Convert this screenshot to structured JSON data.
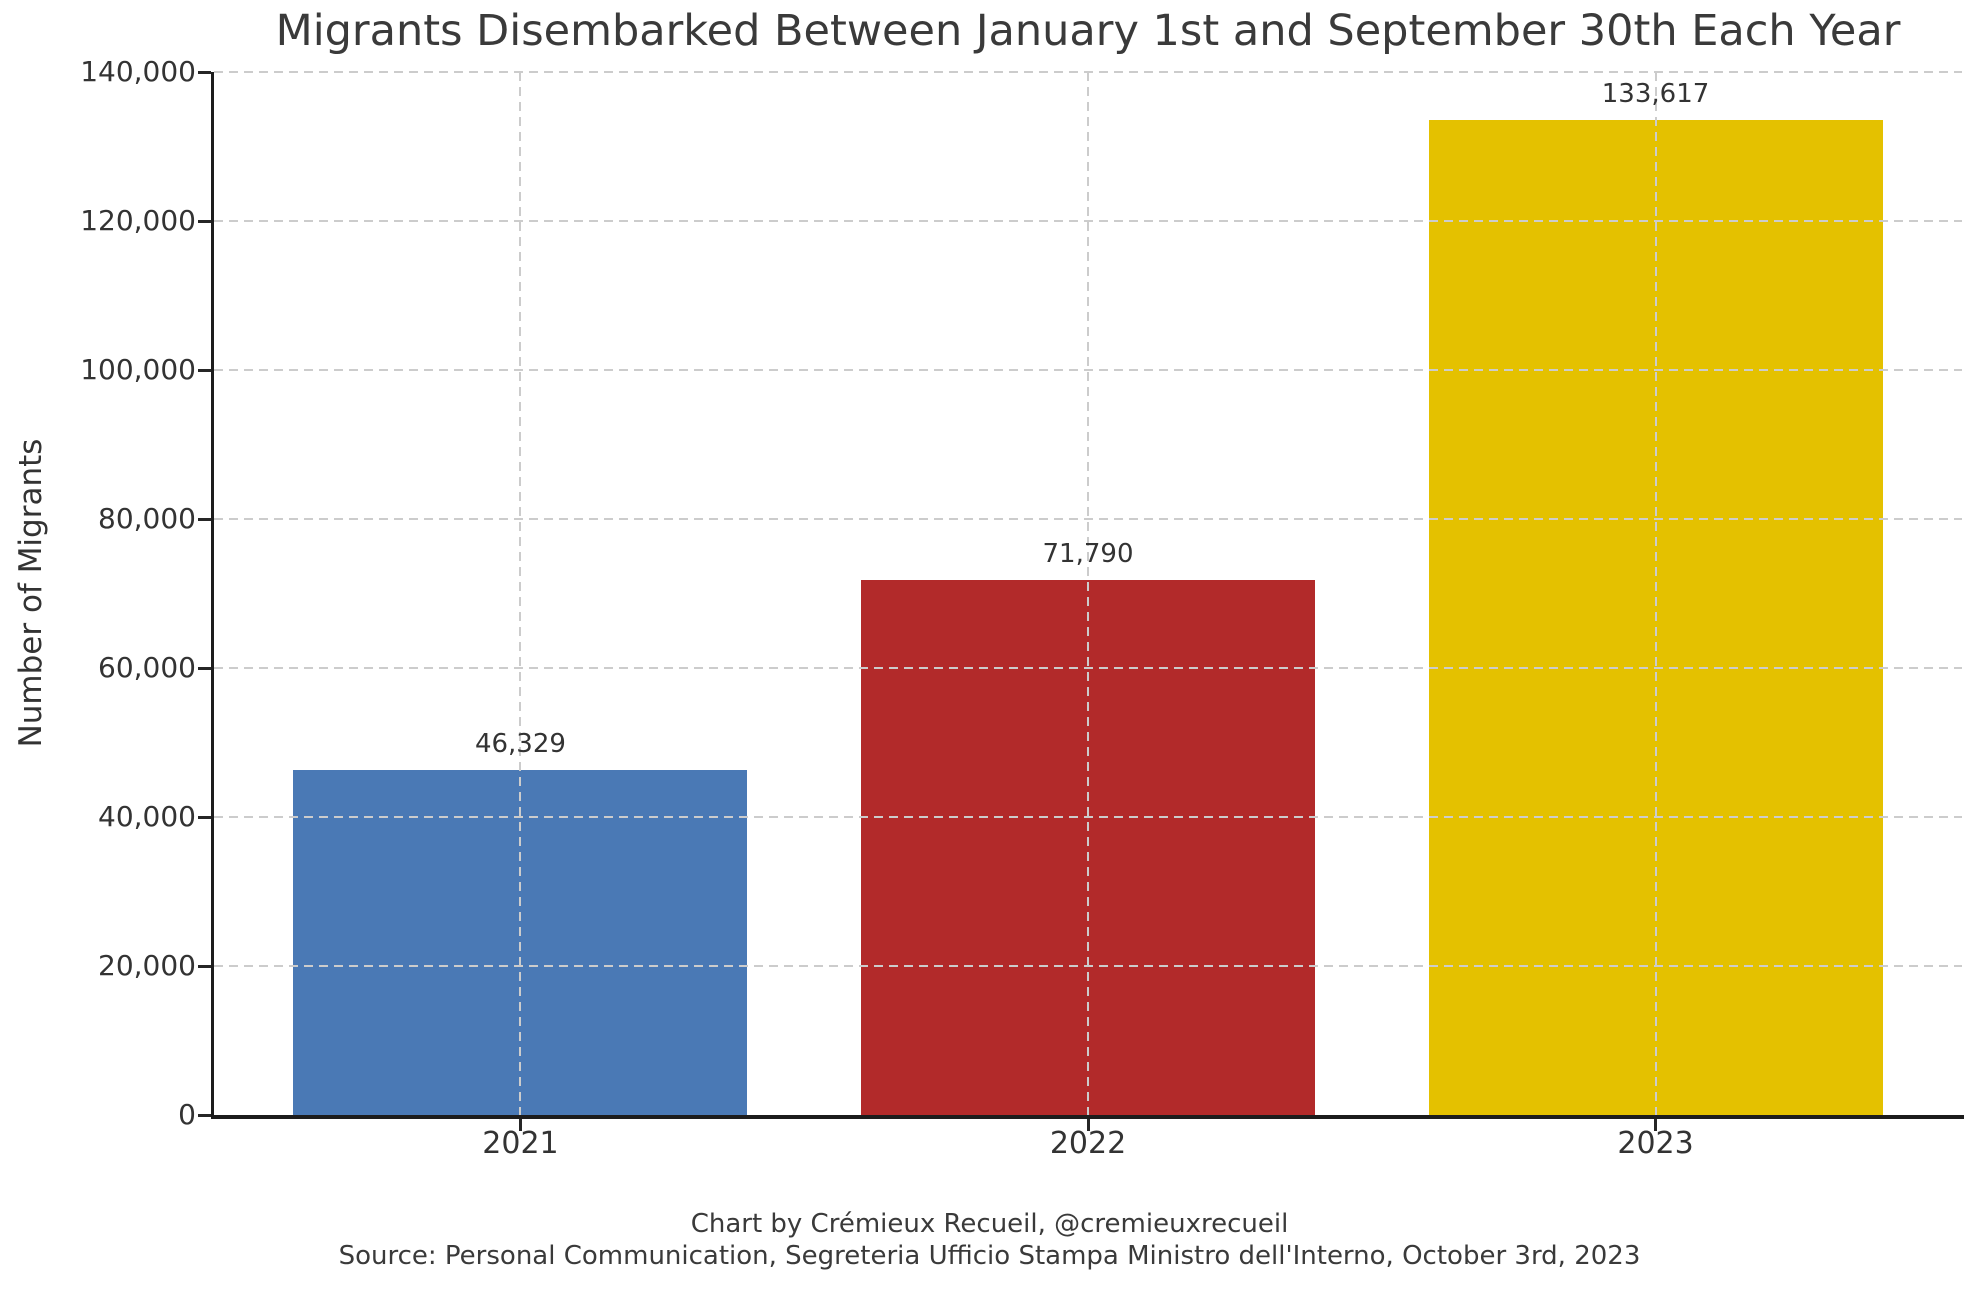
{
  "chart_data": {
    "type": "bar",
    "title": "Migrants Disembarked Between January 1st and September 30th Each Year",
    "xlabel": "",
    "ylabel": "Number of Migrants",
    "categories": [
      "2021",
      "2022",
      "2023"
    ],
    "values": [
      46329,
      71790,
      133617
    ],
    "value_labels": [
      "46,329",
      "71,790",
      "133,617"
    ],
    "bar_colors": [
      "#4a79b5",
      "#b22a2a",
      "#e4c100"
    ],
    "ylim": [
      0,
      140000
    ],
    "yticks": [
      {
        "value": 0,
        "label": "0"
      },
      {
        "value": 20000,
        "label": "20,000"
      },
      {
        "value": 40000,
        "label": "40,000"
      },
      {
        "value": 60000,
        "label": "60,000"
      },
      {
        "value": 80000,
        "label": "80,000"
      },
      {
        "value": 100000,
        "label": "100,000"
      },
      {
        "value": 120000,
        "label": "120,000"
      },
      {
        "value": 140000,
        "label": "140,000"
      }
    ],
    "x_range": [
      -0.54,
      2.54
    ],
    "bar_width_fraction": 0.8,
    "grid": {
      "style": "dashed",
      "horizontal_at_yticks": true,
      "vertical_at_bar_centers": true,
      "drawn_above_bars": true
    },
    "legend": "none"
  },
  "footer": {
    "line1": "Chart by Crémieux Recueil, @cremieuxrecueil",
    "line2": "Source: Personal Communication, Segreteria Ufficio Stampa Ministro dell'Interno, October 3rd, 2023"
  },
  "colors": {
    "bar_2021": "#4a79b5",
    "bar_2022": "#b22a2a",
    "bar_2023": "#e4c100",
    "gridline": "#cccccc",
    "axis_spine": "#1c1c1c",
    "tick_text": "#333333",
    "title_text": "#3a3a3a",
    "background": "#ffffff"
  }
}
